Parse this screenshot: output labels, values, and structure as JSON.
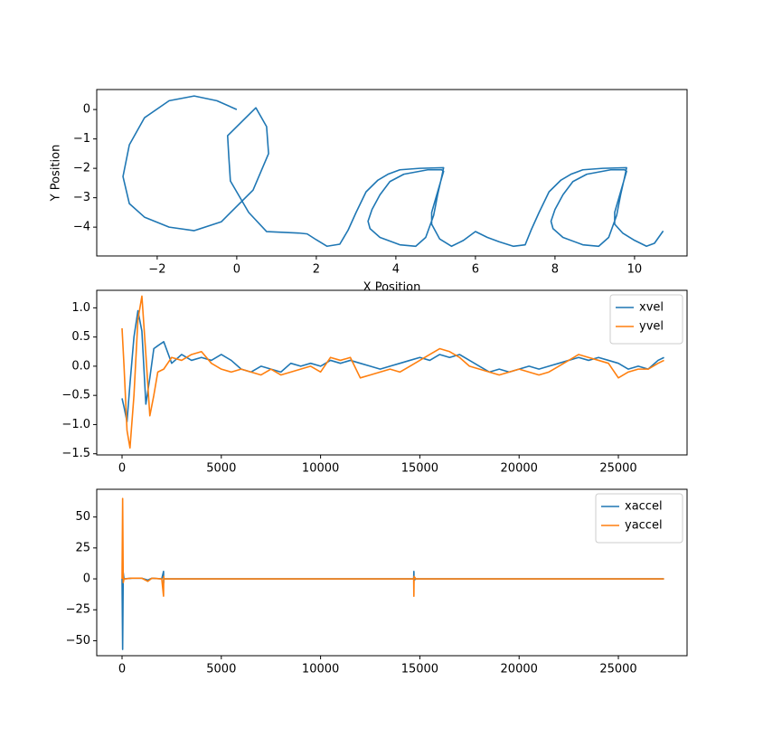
{
  "chart_data": [
    {
      "type": "line",
      "xlabel": "X Position",
      "ylabel": "Y Position",
      "color": "#1f77b4",
      "x": [
        0,
        -0.5,
        -1.07,
        -1.7,
        -2.32,
        -2.7,
        -2.86,
        -2.7,
        -2.32,
        -1.7,
        -1.07,
        -0.39,
        0.41,
        0.8,
        0.75,
        0.48,
        -0.23,
        -0.2,
        -0.16,
        0.3,
        0.75,
        1.55,
        1.77,
        2,
        2.27,
        2.59,
        2.8,
        3.0,
        3.25,
        3.55,
        3.8,
        4.1,
        4.6,
        5.2,
        5.15,
        5.05,
        4.95,
        4.75,
        4.5,
        4.1,
        3.6,
        3.35,
        3.3,
        3.4,
        3.6,
        3.85,
        4.2,
        4.8,
        5.15,
        5.2,
        5.05,
        4.9,
        4.9,
        5.1,
        5.4,
        5.7,
        6.0,
        6.3,
        6.6,
        6.95,
        7.25,
        7.4,
        7.6,
        7.85,
        8.15,
        8.4,
        8.7,
        9.2,
        9.8,
        9.75,
        9.65,
        9.55,
        9.35,
        9.1,
        8.7,
        8.2,
        7.95,
        7.9,
        8.0,
        8.2,
        8.45,
        8.8,
        9.4,
        9.75,
        9.8,
        9.65,
        9.5,
        9.5,
        9.7,
        10.0,
        10.3,
        10.5,
        10.72
      ],
      "values": [
        0,
        0.3,
        0.46,
        0.3,
        -0.28,
        -1.2,
        -2.28,
        -3.2,
        -3.66,
        -4.0,
        -4.12,
        -3.82,
        -2.74,
        -1.5,
        -0.58,
        0.06,
        -0.89,
        -1.6,
        -2.43,
        -3.5,
        -4.15,
        -4.2,
        -4.23,
        -4.43,
        -4.65,
        -4.58,
        -4.1,
        -3.5,
        -2.8,
        -2.4,
        -2.2,
        -2.05,
        -2.0,
        -1.98,
        -2.3,
        -2.9,
        -3.6,
        -4.35,
        -4.65,
        -4.6,
        -4.35,
        -4.05,
        -3.8,
        -3.4,
        -2.9,
        -2.45,
        -2.2,
        -2.05,
        -2.05,
        -2.1,
        -2.8,
        -3.5,
        -3.9,
        -4.4,
        -4.65,
        -4.45,
        -4.15,
        -4.35,
        -4.5,
        -4.65,
        -4.6,
        -4.1,
        -3.5,
        -2.8,
        -2.4,
        -2.2,
        -2.05,
        -2.0,
        -1.98,
        -2.3,
        -2.9,
        -3.6,
        -4.35,
        -4.65,
        -4.6,
        -4.35,
        -4.05,
        -3.8,
        -3.4,
        -2.9,
        -2.45,
        -2.2,
        -2.05,
        -2.05,
        -2.1,
        -2.8,
        -3.5,
        -3.9,
        -4.2,
        -4.45,
        -4.65,
        -4.55,
        -4.13
      ],
      "xlim": [
        -3.52,
        11.32
      ],
      "ylim": [
        -4.98,
        0.68
      ],
      "xticks": [
        {
          "value": -2,
          "label": "−2"
        },
        0,
        2,
        4,
        6,
        8,
        10
      ],
      "yticks": [
        0,
        {
          "value": -1,
          "label": "−1"
        },
        {
          "value": -2,
          "label": "−2"
        },
        {
          "value": -3,
          "label": "−3"
        },
        {
          "value": -4,
          "label": "−4"
        }
      ]
    },
    {
      "type": "line",
      "legend": "upper right",
      "x": [
        0,
        100,
        250,
        400,
        600,
        800,
        1000,
        1200,
        1400,
        1600,
        1800,
        2100,
        2500,
        3000,
        3500,
        4000,
        4500,
        5000,
        5500,
        6000,
        6500,
        7000,
        7500,
        8000,
        8500,
        9000,
        9500,
        10000,
        10500,
        11000,
        11500,
        12000,
        12500,
        13000,
        13500,
        14000,
        14500,
        15000,
        15500,
        16000,
        16500,
        17000,
        17500,
        18000,
        18500,
        19000,
        19500,
        20000,
        20500,
        21000,
        21500,
        22000,
        22500,
        23000,
        23500,
        24000,
        24500,
        25000,
        25500,
        26000,
        26500,
        27000,
        27300
      ],
      "series": [
        {
          "name": "xvel",
          "color": "#1f77b4",
          "values": [
            -0.55,
            -0.7,
            -0.95,
            -0.3,
            0.5,
            0.95,
            0.6,
            -0.65,
            -0.2,
            0.3,
            0.35,
            0.42,
            0.05,
            0.2,
            0.1,
            0.15,
            0.1,
            0.2,
            0.1,
            -0.05,
            -0.1,
            0.0,
            -0.05,
            -0.1,
            0.05,
            0.0,
            0.05,
            0.0,
            0.1,
            0.05,
            0.1,
            0.05,
            0.0,
            -0.05,
            0.0,
            0.05,
            0.1,
            0.15,
            0.1,
            0.2,
            0.15,
            0.2,
            0.1,
            0.0,
            -0.1,
            -0.05,
            -0.1,
            -0.05,
            0.0,
            -0.05,
            0.0,
            0.05,
            0.1,
            0.15,
            0.1,
            0.15,
            0.1,
            0.05,
            -0.05,
            0.0,
            -0.05,
            0.1,
            0.15
          ]
        },
        {
          "name": "yvel",
          "color": "#ff7f0e",
          "values": [
            0.65,
            0.0,
            -1.1,
            -1.4,
            -0.5,
            0.8,
            1.2,
            0.2,
            -0.85,
            -0.5,
            -0.1,
            -0.05,
            0.15,
            0.1,
            0.2,
            0.25,
            0.05,
            -0.05,
            -0.1,
            -0.05,
            -0.1,
            -0.15,
            -0.05,
            -0.15,
            -0.1,
            -0.05,
            0.0,
            -0.1,
            0.15,
            0.1,
            0.15,
            -0.2,
            -0.15,
            -0.1,
            -0.05,
            -0.1,
            0.0,
            0.1,
            0.2,
            0.3,
            0.25,
            0.15,
            0.0,
            -0.05,
            -0.1,
            -0.15,
            -0.1,
            -0.05,
            -0.1,
            -0.15,
            -0.1,
            0.0,
            0.1,
            0.2,
            0.15,
            0.1,
            0.05,
            -0.2,
            -0.1,
            -0.05,
            -0.05,
            0.05,
            0.1
          ]
        }
      ],
      "xlim": [
        -1275,
        28460
      ],
      "ylim": [
        -1.52,
        1.3
      ],
      "xticks": [
        0,
        5000,
        10000,
        15000,
        20000,
        25000
      ],
      "yticks": [
        {
          "value": 1.0,
          "label": "1.0"
        },
        {
          "value": 0.5,
          "label": "0.5"
        },
        {
          "value": 0,
          "label": "0.0"
        },
        {
          "value": -0.5,
          "label": "−0.5"
        },
        {
          "value": -1.0,
          "label": "−1.0"
        },
        {
          "value": -1.5,
          "label": "−1.5"
        }
      ]
    },
    {
      "type": "line",
      "legend": "upper right",
      "x": [
        0,
        30,
        60,
        100,
        500,
        1000,
        1300,
        1500,
        2000,
        2090,
        2100,
        2110,
        2200,
        5000,
        10000,
        14000,
        14690,
        14700,
        14710,
        14800,
        20000,
        27300
      ],
      "series": [
        {
          "name": "xaccel",
          "color": "#1f77b4",
          "values": [
            0,
            -57,
            5,
            0,
            0.5,
            0.5,
            -1,
            0.5,
            0,
            6,
            -3,
            0,
            0,
            0,
            0,
            0,
            0,
            6,
            -1,
            0,
            0,
            0
          ]
        },
        {
          "name": "yaccel",
          "color": "#ff7f0e",
          "values": [
            0,
            65,
            -3,
            0,
            0.5,
            0.5,
            -2,
            0.5,
            0,
            -14,
            2,
            0,
            0,
            0,
            0,
            0,
            0,
            -14,
            2,
            0,
            0,
            0
          ]
        }
      ],
      "xlim": [
        -1275,
        28460
      ],
      "ylim": [
        -62.1,
        72.4
      ],
      "xticks": [
        0,
        5000,
        10000,
        15000,
        20000,
        25000
      ],
      "yticks": [
        50,
        25,
        0,
        {
          "value": -25,
          "label": "−25"
        },
        {
          "value": -50,
          "label": "−50"
        }
      ]
    }
  ]
}
